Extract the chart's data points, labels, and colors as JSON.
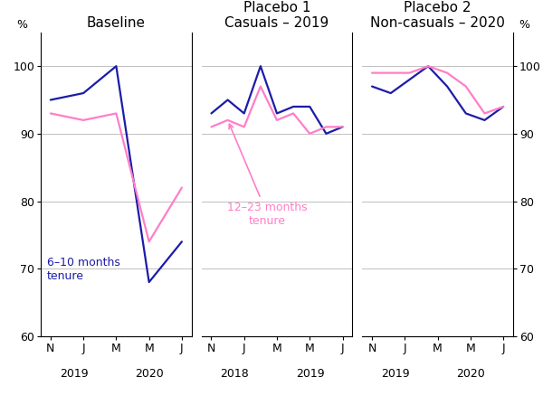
{
  "panel1_title": "Baseline",
  "panel2_title": "Placebo 1\nCasuals – 2019",
  "panel3_title": "Placebo 2\nNon-casuals – 2020",
  "ylim": [
    60,
    105
  ],
  "yticks": [
    60,
    70,
    80,
    90,
    100
  ],
  "ytick_labels": [
    "60",
    "70",
    "80",
    "90",
    "100"
  ],
  "panel_xtick_labels": [
    "N",
    "J",
    "M",
    "M",
    "J"
  ],
  "blue_color": "#1c1ca8",
  "pink_color": "#ff7ec8",
  "line_width": 1.6,
  "p1_blue_x": [
    0,
    1,
    2,
    3,
    4
  ],
  "p1_blue_y": [
    95,
    96,
    100,
    68,
    74
  ],
  "p1_pink_x": [
    0,
    1,
    2,
    3,
    4
  ],
  "p1_pink_y": [
    93,
    92,
    93,
    74,
    82
  ],
  "p2_blue_x": [
    0,
    0.5,
    1,
    1.5,
    2,
    2.5,
    3,
    3.5,
    4
  ],
  "p2_blue_y": [
    93,
    95,
    93,
    100,
    93,
    94,
    94,
    90,
    91
  ],
  "p2_pink_x": [
    0,
    0.5,
    1,
    1.5,
    2,
    2.5,
    3,
    3.5,
    4
  ],
  "p2_pink_y": [
    91,
    92,
    91,
    97,
    92,
    93,
    90,
    91,
    91
  ],
  "p3_blue_x": [
    0,
    0.57,
    1.14,
    1.71,
    2.29,
    2.86,
    3.43,
    4
  ],
  "p3_blue_y": [
    97,
    96,
    98,
    100,
    97,
    93,
    92,
    94
  ],
  "p3_pink_x": [
    0,
    0.57,
    1.14,
    1.71,
    2.29,
    2.86,
    3.43,
    4
  ],
  "p3_pink_y": [
    99,
    99,
    99,
    100,
    99,
    97,
    93,
    94
  ],
  "label_blue": "6–10 months\ntenure",
  "label_pink": "12–23 months\ntenure",
  "p1_year1": "2019",
  "p1_year2": "2020",
  "p2_year1": "2018",
  "p2_year2": "2019",
  "p3_year1": "2019",
  "p3_year2": "2020",
  "background_color": "#ffffff",
  "grid_color": "#c0c0c0",
  "spine_color": "#000000",
  "title_fontsize": 11,
  "tick_fontsize": 9,
  "label_fontsize": 9,
  "pct_fontsize": 9,
  "year_fontsize": 9
}
